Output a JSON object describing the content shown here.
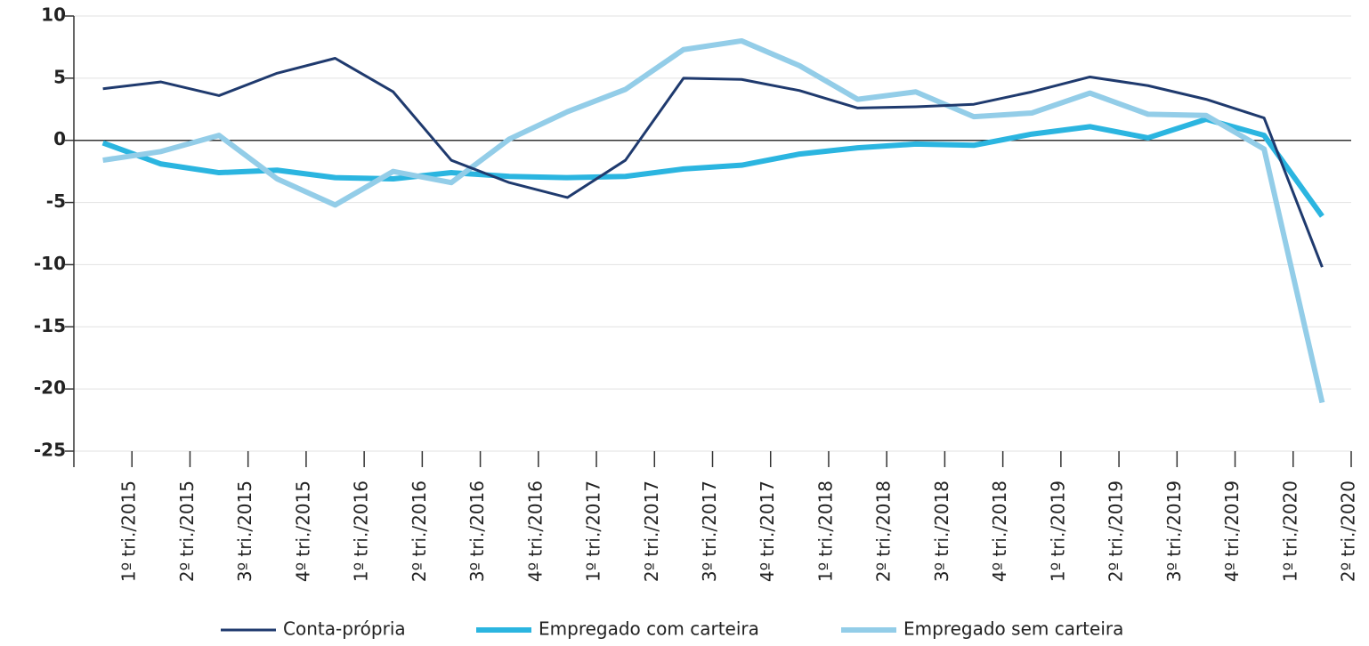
{
  "chart_data": {
    "type": "line",
    "categories": [
      "1º tri./2015",
      "2º tri./2015",
      "3º tri./2015",
      "4º tri./2015",
      "1º tri./2016",
      "2º tri./2016",
      "3º tri./2016",
      "4º tri./2016",
      "1º tri./2017",
      "2º tri./2017",
      "3º tri./2017",
      "4º tri./2017",
      "1º tri./2018",
      "2º tri./2018",
      "3º tri./2018",
      "4º tri./2018",
      "1º tri./2019",
      "2º tri./2019",
      "3º tri./2019",
      "4º tri./2019",
      "1º tri./2020",
      "2º tri./2020"
    ],
    "series": [
      {
        "name": "Conta-própria",
        "color": "#1f3a6e",
        "width": 3,
        "values": [
          4.15,
          4.7,
          3.6,
          5.4,
          6.6,
          3.9,
          -1.6,
          -3.4,
          -4.6,
          -1.6,
          5.0,
          4.9,
          4.0,
          2.6,
          2.7,
          2.9,
          3.9,
          5.1,
          4.4,
          3.3,
          1.8,
          -10.2
        ]
      },
      {
        "name": "Empregado com carteira",
        "color": "#2bb5e0",
        "width": 6,
        "values": [
          -0.2,
          -1.9,
          -2.6,
          -2.4,
          -3.0,
          -3.1,
          -2.6,
          -2.9,
          -3.0,
          -2.9,
          -2.3,
          -2.0,
          -1.1,
          -0.6,
          -0.3,
          -0.4,
          0.5,
          1.1,
          0.2,
          1.7,
          0.4,
          -6.1
        ]
      },
      {
        "name": "Empregado sem carteira",
        "color": "#93cde8",
        "width": 6,
        "values": [
          -1.6,
          -0.9,
          0.4,
          -3.1,
          -5.2,
          -2.5,
          -3.4,
          0.1,
          2.3,
          4.1,
          7.3,
          8.0,
          6.0,
          3.3,
          3.9,
          1.9,
          2.2,
          3.8,
          2.1,
          2.0,
          -0.7,
          -21.1
        ]
      }
    ],
    "ylim": [
      -25,
      10
    ],
    "yticks": [
      -25,
      -20,
      -15,
      -10,
      -5,
      0,
      5,
      10
    ],
    "grid": true
  }
}
